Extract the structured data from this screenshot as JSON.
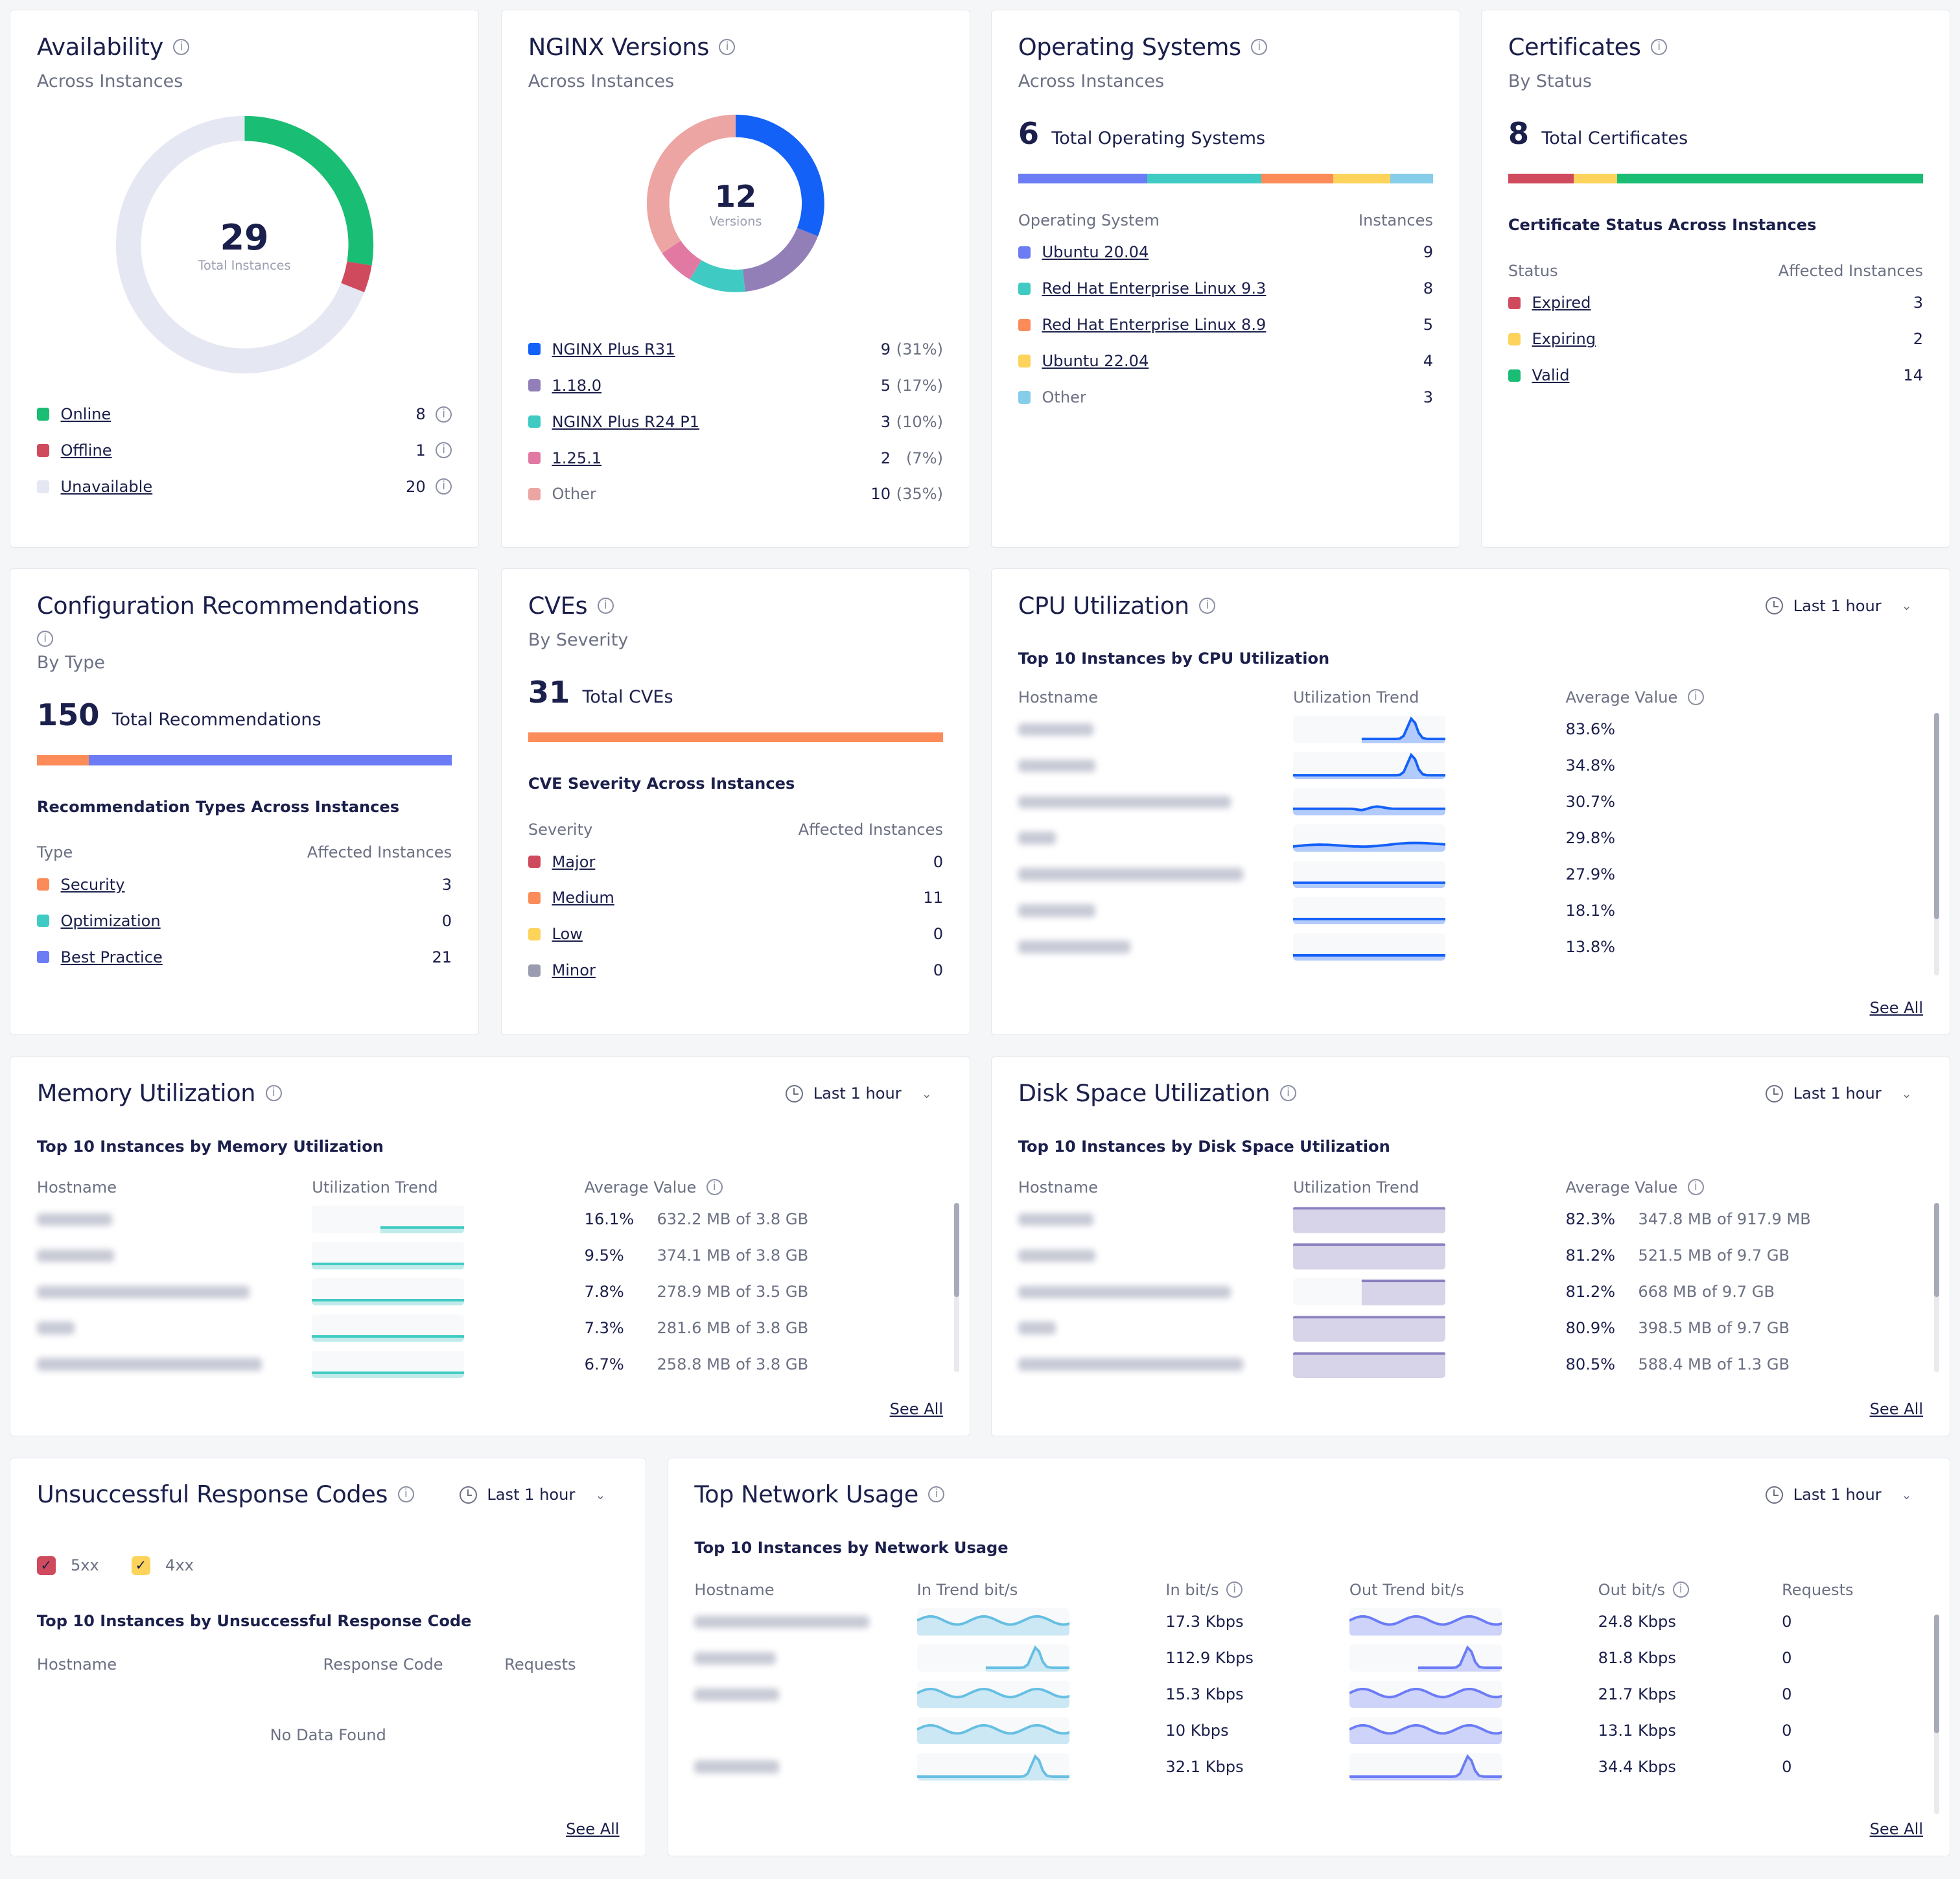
{
  "colors": {
    "online": "#19bd73",
    "offline": "#cf4a5d",
    "unavailable": "#e5e7f2",
    "r31": "#1461f8",
    "v118": "#937fb8",
    "r24": "#3fcbc3",
    "v125": "#e279a3",
    "other": "#eca5a2",
    "cpu": "#1461f8",
    "mem": "#3fcbc3",
    "disk": "#8c7fbf",
    "net": "#6b7cf5"
  },
  "availability": {
    "title": "Availability",
    "subtitle": "Across Instances",
    "total": "29",
    "total_label": "Total Instances",
    "items": [
      {
        "label": "Online",
        "value": "8",
        "color": "#19bd73"
      },
      {
        "label": "Offline",
        "value": "1",
        "color": "#cf4a5d"
      },
      {
        "label": "Unavailable",
        "value": "20",
        "color": "#e5e7f2"
      }
    ]
  },
  "nginx": {
    "title": "NGINX Versions",
    "subtitle": "Across Instances",
    "total": "12",
    "total_label": "Versions",
    "items": [
      {
        "label": "NGINX Plus R31",
        "value": "9",
        "pct": "(31%)",
        "color": "#1461f8",
        "link": true
      },
      {
        "label": "1.18.0",
        "value": "5",
        "pct": "(17%)",
        "color": "#937fb8",
        "link": true
      },
      {
        "label": "NGINX Plus R24 P1",
        "value": "3",
        "pct": "(10%)",
        "color": "#3fcbc3",
        "link": true
      },
      {
        "label": "1.25.1",
        "value": "2",
        "pct": "(7%)",
        "color": "#e279a3",
        "link": true
      },
      {
        "label": "Other",
        "value": "10",
        "pct": "(35%)",
        "color": "#eca5a2",
        "link": false
      }
    ]
  },
  "os": {
    "title": "Operating Systems",
    "subtitle": "Across Instances",
    "total": "6",
    "total_label": "Total Operating Systems",
    "col1": "Operating System",
    "col2": "Instances",
    "items": [
      {
        "label": "Ubuntu 20.04",
        "value": "9",
        "color": "#6b7cf5",
        "link": true
      },
      {
        "label": "Red Hat Enterprise Linux 9.3",
        "value": "8",
        "color": "#3fcbc3",
        "link": true
      },
      {
        "label": "Red Hat Enterprise Linux 8.9",
        "value": "5",
        "color": "#fb8c5a",
        "link": true
      },
      {
        "label": "Ubuntu 22.04",
        "value": "4",
        "color": "#fdd35c",
        "link": true
      },
      {
        "label": "Other",
        "value": "3",
        "color": "#86cdea",
        "link": false
      }
    ]
  },
  "certs": {
    "title": "Certificates",
    "subtitle": "By Status",
    "total": "8",
    "total_label": "Total Certificates",
    "section": "Certificate Status Across Instances",
    "col1": "Status",
    "col2": "Affected Instances",
    "items": [
      {
        "label": "Expired",
        "value": "3",
        "color": "#cf4a5d",
        "link": true
      },
      {
        "label": "Expiring",
        "value": "2",
        "color": "#fdd35c",
        "link": true
      },
      {
        "label": "Valid",
        "value": "14",
        "color": "#19bd73",
        "link": true
      }
    ]
  },
  "config": {
    "title": "Configuration Recommendations",
    "subtitle": "By Type",
    "total": "150",
    "total_label": "Total Recommendations",
    "section": "Recommendation Types Across Instances",
    "col1": "Type",
    "col2": "Affected Instances",
    "items": [
      {
        "label": "Security",
        "value": "3",
        "color": "#fb8c5a",
        "link": true
      },
      {
        "label": "Optimization",
        "value": "0",
        "color": "#3fcbc3",
        "link": true
      },
      {
        "label": "Best Practice",
        "value": "21",
        "color": "#6b7cf5",
        "link": true
      }
    ]
  },
  "cves": {
    "title": "CVEs",
    "subtitle": "By Severity",
    "total": "31",
    "total_label": "Total CVEs",
    "section": "CVE Severity Across Instances",
    "col1": "Severity",
    "col2": "Affected Instances",
    "items": [
      {
        "label": "Major",
        "value": "0",
        "color": "#cf4a5d",
        "link": true
      },
      {
        "label": "Medium",
        "value": "11",
        "color": "#fb8c5a",
        "link": true
      },
      {
        "label": "Low",
        "value": "0",
        "color": "#fdd35c",
        "link": true
      },
      {
        "label": "Minor",
        "value": "0",
        "color": "#9a9db0",
        "link": true
      }
    ]
  },
  "cpu": {
    "title": "CPU Utilization",
    "time": "Last 1 hour",
    "section": "Top 10 Instances by CPU Utilization",
    "cols": [
      "Hostname",
      "Utilization Trend",
      "Average Value"
    ],
    "see_all": "See All",
    "rows": [
      {
        "value": "83.6%",
        "trend": "spike-late"
      },
      {
        "value": "34.8%",
        "trend": "spike"
      },
      {
        "value": "30.7%",
        "trend": "bump"
      },
      {
        "value": "29.8%",
        "trend": "rise"
      },
      {
        "value": "27.9%",
        "trend": "flat"
      },
      {
        "value": "18.1%",
        "trend": "flat"
      },
      {
        "value": "13.8%",
        "trend": "flat"
      }
    ]
  },
  "memory": {
    "title": "Memory Utilization",
    "time": "Last 1 hour",
    "section": "Top 10 Instances by Memory Utilization",
    "cols": [
      "Hostname",
      "Utilization Trend",
      "Average Value"
    ],
    "see_all": "See All",
    "rows": [
      {
        "value": "16.1%",
        "detail": "632.2 MB of 3.8 GB",
        "trend": "late"
      },
      {
        "value": "9.5%",
        "detail": "374.1 MB of 3.8 GB",
        "trend": "flat"
      },
      {
        "value": "7.8%",
        "detail": "278.9 MB of 3.5 GB",
        "trend": "flat"
      },
      {
        "value": "7.3%",
        "detail": "281.6 MB of 3.8 GB",
        "trend": "flat"
      },
      {
        "value": "6.7%",
        "detail": "258.8 MB of 3.8 GB",
        "trend": "flat"
      }
    ]
  },
  "disk": {
    "title": "Disk Space Utilization",
    "time": "Last 1 hour",
    "section": "Top 10 Instances by Disk Space Utilization",
    "cols": [
      "Hostname",
      "Utilization Trend",
      "Average Value"
    ],
    "see_all": "See All",
    "rows": [
      {
        "value": "82.3%",
        "detail": "347.8 MB of 917.9 MB",
        "trend": "full"
      },
      {
        "value": "81.2%",
        "detail": "521.5 MB of 9.7 GB",
        "trend": "full"
      },
      {
        "value": "81.2%",
        "detail": "668 MB of 9.7 GB",
        "trend": "late"
      },
      {
        "value": "80.9%",
        "detail": "398.5 MB of 9.7 GB",
        "trend": "full"
      },
      {
        "value": "80.5%",
        "detail": "588.4 MB of 1.3 GB",
        "trend": "full"
      }
    ]
  },
  "responses": {
    "title": "Unsuccessful Response Codes",
    "time": "Last 1 hour",
    "filters": [
      {
        "label": "5xx",
        "color": "#cf4a5d",
        "checked": true
      },
      {
        "label": "4xx",
        "color": "#fdd35c",
        "checked": true
      }
    ],
    "section": "Top 10 Instances by Unsuccessful Response Code",
    "cols": [
      "Hostname",
      "Response Code",
      "Requests"
    ],
    "empty": "No Data Found",
    "see_all": "See All"
  },
  "network": {
    "title": "Top Network Usage",
    "time": "Last 1 hour",
    "section": "Top 10 Instances by Network Usage",
    "cols": [
      "Hostname",
      "In Trend bit/s",
      "In bit/s",
      "Out Trend bit/s",
      "Out bit/s",
      "Requests"
    ],
    "see_all": "See All",
    "rows": [
      {
        "in": "17.3 Kbps",
        "out": "24.8 Kbps",
        "req": "0",
        "trend": "wave"
      },
      {
        "in": "112.9 Kbps",
        "out": "81.8 Kbps",
        "req": "0",
        "trend": "spike-late"
      },
      {
        "in": "15.3 Kbps",
        "out": "21.7 Kbps",
        "req": "0",
        "trend": "wave"
      },
      {
        "in": "10 Kbps",
        "out": "13.1 Kbps",
        "req": "0",
        "trend": "wave"
      },
      {
        "in": "32.1 Kbps",
        "out": "34.4 Kbps",
        "req": "0",
        "trend": "spike"
      }
    ]
  }
}
